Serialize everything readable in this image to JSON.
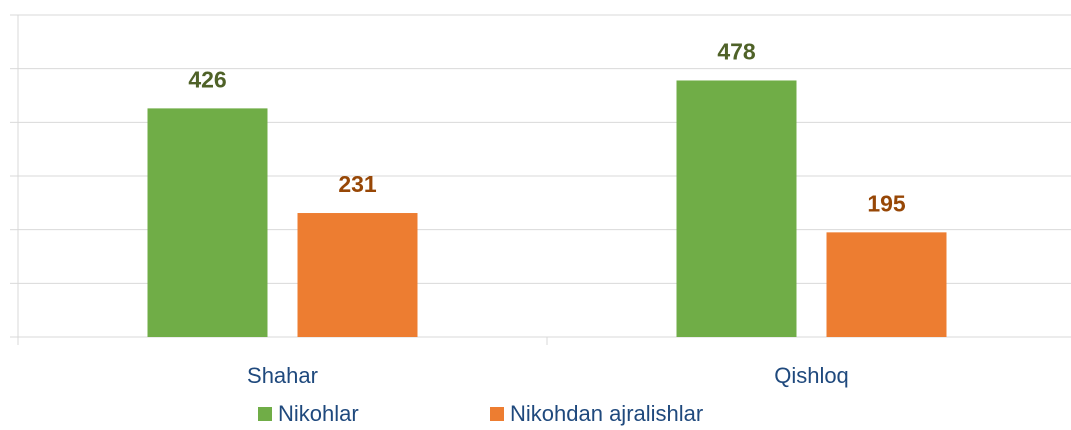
{
  "chart_data": {
    "type": "bar",
    "categories": [
      "Shahar",
      "Qishloq"
    ],
    "series": [
      {
        "name": "Nikohlar",
        "color": "#70ad47",
        "label_color": "#4f6228",
        "values": [
          426,
          478
        ]
      },
      {
        "name": "Nikohdan ajralishlar",
        "color": "#ed7d31",
        "label_color": "#974706",
        "values": [
          231,
          195
        ]
      }
    ],
    "ylim": [
      0,
      600
    ],
    "yticks": [
      0,
      100,
      200,
      300,
      400,
      500,
      600
    ],
    "grid": true,
    "legend": "bottom"
  }
}
